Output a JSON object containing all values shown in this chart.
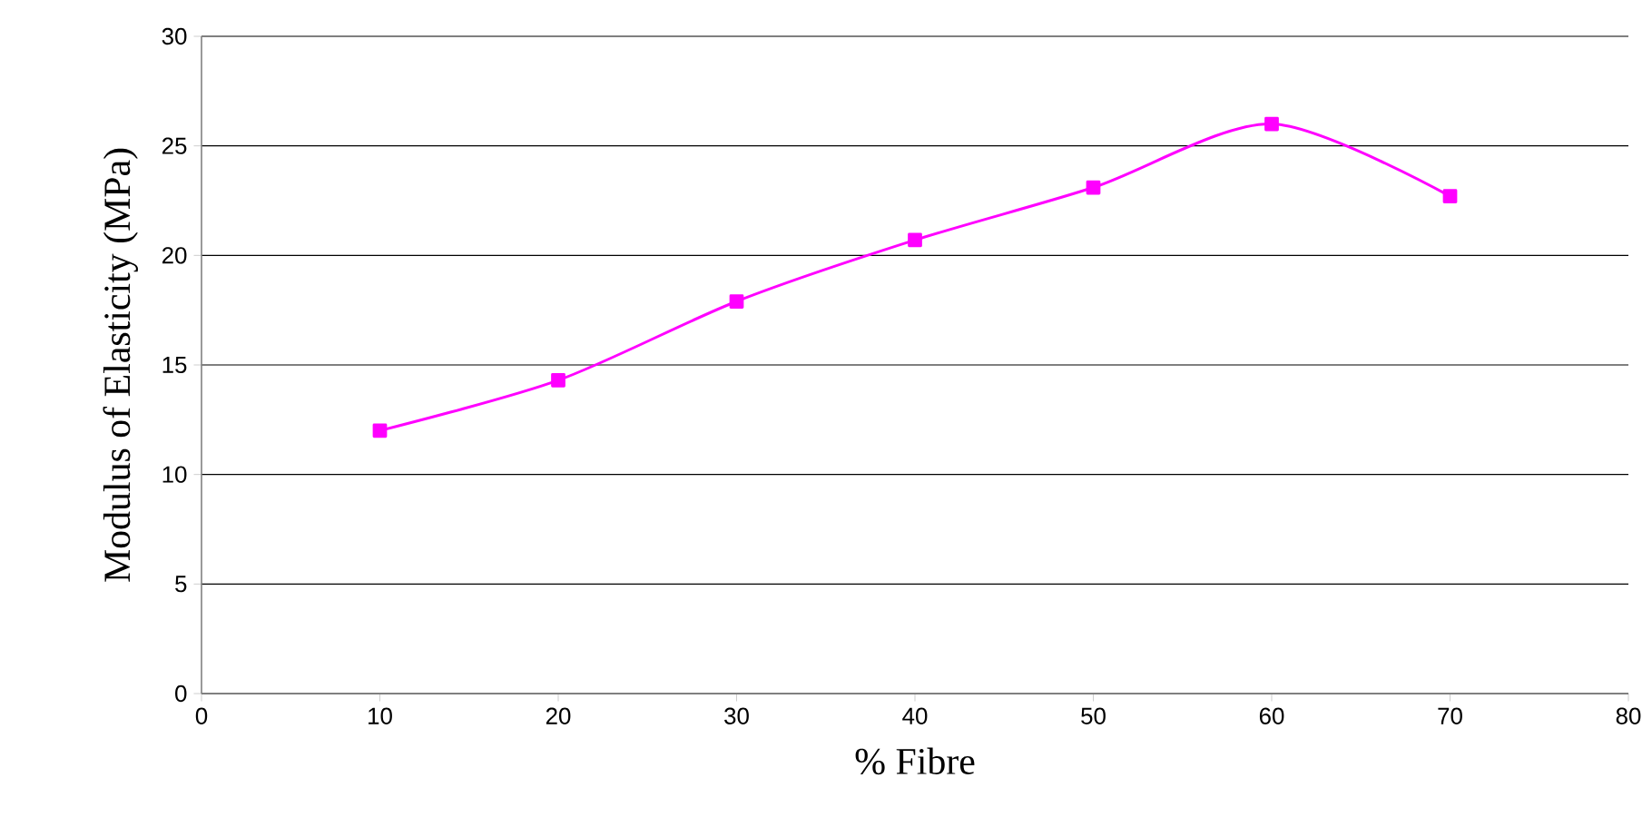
{
  "chart_data": {
    "type": "line",
    "xlabel": "% Fibre",
    "ylabel": "Modulus of Elasticity (MPa)",
    "x": [
      10,
      20,
      30,
      40,
      50,
      60,
      70
    ],
    "series": [
      {
        "color": "#ff00ff",
        "values": [
          12.0,
          14.3,
          17.9,
          20.7,
          23.1,
          26.0,
          22.7
        ]
      }
    ],
    "xlim": [
      0,
      80
    ],
    "xticks": [
      0,
      10,
      20,
      30,
      40,
      50,
      60,
      70,
      80
    ],
    "ylim": [
      0,
      30
    ],
    "yticks": [
      0,
      5,
      10,
      15,
      20,
      25,
      30
    ],
    "grid": "y",
    "marker": "square",
    "line_style": "solid"
  }
}
